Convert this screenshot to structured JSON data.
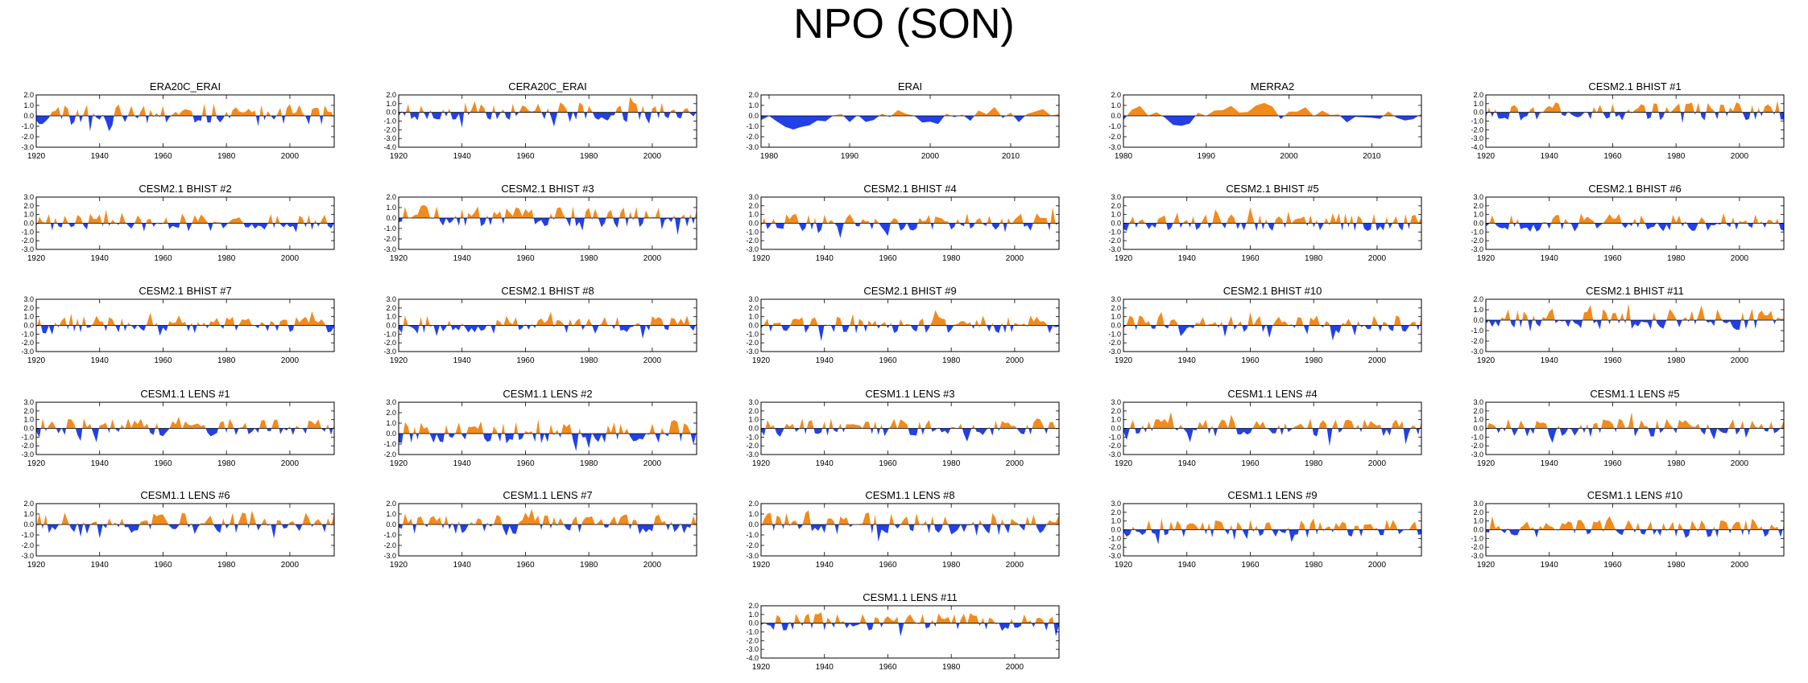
{
  "title": "NPO (SON)",
  "colors": {
    "positive": "#f28a1c",
    "negative": "#2240e8",
    "axis": "#000000",
    "zero_line": "#000000"
  },
  "panel_grid": {
    "columns": 5,
    "rows": [
      [
        "ERA20C_ERAI",
        "CERA20C_ERAI",
        "ERAI",
        "MERRA2",
        "CESM2.1 BHIST #1"
      ],
      [
        "CESM2.1 BHIST #2",
        "CESM2.1 BHIST #3",
        "CESM2.1 BHIST #4",
        "CESM2.1 BHIST #5",
        "CESM2.1 BHIST #6"
      ],
      [
        "CESM2.1 BHIST #7",
        "CESM2.1 BHIST #8",
        "CESM2.1 BHIST #9",
        "CESM2.1 BHIST #10",
        "CESM2.1 BHIST #11"
      ],
      [
        "CESM1.1 LENS #1",
        "CESM1.1 LENS #2",
        "CESM1.1 LENS #3",
        "CESM1.1 LENS #4",
        "CESM1.1 LENS #5"
      ],
      [
        "CESM1.1 LENS #6",
        "CESM1.1 LENS #7",
        "CESM1.1 LENS #8",
        "CESM1.1 LENS #9",
        "CESM1.1 LENS #10"
      ],
      [
        "",
        "",
        "CESM1.1 LENS #11",
        "",
        ""
      ]
    ]
  },
  "chart_data": [
    {
      "type": "area",
      "title": "ERA20C_ERAI",
      "xlim": [
        1920,
        2014
      ],
      "xticks": [
        "1920",
        "1940",
        "1960",
        "1980",
        "2000"
      ],
      "ylim": [
        -3,
        2
      ],
      "yticks": [
        "2.0",
        "1.0",
        "0.0",
        "-1.0",
        "-2.0",
        "-3.0"
      ],
      "seed": 11
    },
    {
      "type": "area",
      "title": "CERA20C_ERAI",
      "xlim": [
        1920,
        2014
      ],
      "xticks": [
        "1920",
        "1940",
        "1960",
        "1980",
        "2000"
      ],
      "ylim": [
        -4,
        2
      ],
      "yticks": [
        "2.0",
        "1.0",
        "0.0",
        "-1.0",
        "-2.0",
        "-3.0",
        "-4.0"
      ],
      "seed": 23
    },
    {
      "type": "area",
      "title": "ERAI",
      "xlim": [
        1979,
        2016
      ],
      "xticks": [
        "1980",
        "1990",
        "2000",
        "2010"
      ],
      "ylim": [
        -3,
        2
      ],
      "yticks": [
        "2.0",
        "1.0",
        "0.0",
        "-1.0",
        "-2.0",
        "-3.0"
      ],
      "seed": 37,
      "smooth": true
    },
    {
      "type": "area",
      "title": "MERRA2",
      "xlim": [
        1980,
        2016
      ],
      "xticks": [
        "1980",
        "1990",
        "2000",
        "2010"
      ],
      "ylim": [
        -3,
        2
      ],
      "yticks": [
        "2.0",
        "1.0",
        "0.0",
        "-1.0",
        "-2.0",
        "-3.0"
      ],
      "seed": 41,
      "smooth": true
    },
    {
      "type": "area",
      "title": "CESM2.1 BHIST #1",
      "xlim": [
        1920,
        2014
      ],
      "xticks": [
        "1920",
        "1940",
        "1960",
        "1980",
        "2000"
      ],
      "ylim": [
        -4,
        2
      ],
      "yticks": [
        "2.0",
        "1.0",
        "0.0",
        "-1.0",
        "-2.0",
        "-3.0",
        "-4.0"
      ],
      "seed": 53
    },
    {
      "type": "area",
      "title": "CESM2.1 BHIST #2",
      "xlim": [
        1920,
        2014
      ],
      "xticks": [
        "1920",
        "1940",
        "1960",
        "1980",
        "2000"
      ],
      "ylim": [
        -3,
        3
      ],
      "yticks": [
        "3.0",
        "2.0",
        "1.0",
        "0.0",
        "-1.0",
        "-2.0",
        "-3.0"
      ],
      "seed": 61
    },
    {
      "type": "area",
      "title": "CESM2.1 BHIST #3",
      "xlim": [
        1920,
        2014
      ],
      "xticks": [
        "1920",
        "1940",
        "1960",
        "1980",
        "2000"
      ],
      "ylim": [
        -3,
        2
      ],
      "yticks": [
        "2.0",
        "1.0",
        "0.0",
        "-1.0",
        "-2.0",
        "-3.0"
      ],
      "seed": 71
    },
    {
      "type": "area",
      "title": "CESM2.1 BHIST #4",
      "xlim": [
        1920,
        2014
      ],
      "xticks": [
        "1920",
        "1940",
        "1960",
        "1980",
        "2000"
      ],
      "ylim": [
        -3,
        3
      ],
      "yticks": [
        "3.0",
        "2.0",
        "1.0",
        "0.0",
        "-1.0",
        "-2.0",
        "-3.0"
      ],
      "seed": 83
    },
    {
      "type": "area",
      "title": "CESM2.1 BHIST #5",
      "xlim": [
        1920,
        2014
      ],
      "xticks": [
        "1920",
        "1940",
        "1960",
        "1980",
        "2000"
      ],
      "ylim": [
        -3,
        3
      ],
      "yticks": [
        "3.0",
        "2.0",
        "1.0",
        "0.0",
        "-1.0",
        "-2.0",
        "-3.0"
      ],
      "seed": 97
    },
    {
      "type": "area",
      "title": "CESM2.1 BHIST #6",
      "xlim": [
        1920,
        2014
      ],
      "xticks": [
        "1920",
        "1940",
        "1960",
        "1980",
        "2000"
      ],
      "ylim": [
        -3,
        3
      ],
      "yticks": [
        "3.0",
        "2.0",
        "1.0",
        "0.0",
        "-1.0",
        "-2.0",
        "-3.0"
      ],
      "seed": 101
    },
    {
      "type": "area",
      "title": "CESM2.1 BHIST #7",
      "xlim": [
        1920,
        2014
      ],
      "xticks": [
        "1920",
        "1940",
        "1960",
        "1980",
        "2000"
      ],
      "ylim": [
        -3,
        3
      ],
      "yticks": [
        "3.0",
        "2.0",
        "1.0",
        "0.0",
        "-1.0",
        "-2.0",
        "-3.0"
      ],
      "seed": 113
    },
    {
      "type": "area",
      "title": "CESM2.1 BHIST #8",
      "xlim": [
        1920,
        2014
      ],
      "xticks": [
        "1920",
        "1940",
        "1960",
        "1980",
        "2000"
      ],
      "ylim": [
        -3,
        3
      ],
      "yticks": [
        "3.0",
        "2.0",
        "1.0",
        "0.0",
        "-1.0",
        "-2.0",
        "-3.0"
      ],
      "seed": 127
    },
    {
      "type": "area",
      "title": "CESM2.1 BHIST #9",
      "xlim": [
        1920,
        2014
      ],
      "xticks": [
        "1920",
        "1940",
        "1960",
        "1980",
        "2000"
      ],
      "ylim": [
        -3,
        3
      ],
      "yticks": [
        "3.0",
        "2.0",
        "1.0",
        "0.0",
        "-1.0",
        "-2.0",
        "-3.0"
      ],
      "seed": 131
    },
    {
      "type": "area",
      "title": "CESM2.1 BHIST #10",
      "xlim": [
        1920,
        2014
      ],
      "xticks": [
        "1920",
        "1940",
        "1960",
        "1980",
        "2000"
      ],
      "ylim": [
        -3,
        3
      ],
      "yticks": [
        "3.0",
        "2.0",
        "1.0",
        "0.0",
        "-1.0",
        "-2.0",
        "-3.0"
      ],
      "seed": 139
    },
    {
      "type": "area",
      "title": "CESM2.1 BHIST #11",
      "xlim": [
        1920,
        2014
      ],
      "xticks": [
        "1920",
        "1940",
        "1960",
        "1980",
        "2000"
      ],
      "ylim": [
        -3,
        2
      ],
      "yticks": [
        "2.0",
        "1.0",
        "0.0",
        "-1.0",
        "-2.0",
        "-3.0"
      ],
      "seed": 149
    },
    {
      "type": "area",
      "title": "CESM1.1 LENS #1",
      "xlim": [
        1920,
        2014
      ],
      "xticks": [
        "1920",
        "1940",
        "1960",
        "1980",
        "2000"
      ],
      "ylim": [
        -3,
        3
      ],
      "yticks": [
        "3.0",
        "2.0",
        "1.0",
        "0.0",
        "-1.0",
        "-2.0",
        "-3.0"
      ],
      "seed": 151
    },
    {
      "type": "area",
      "title": "CESM1.1 LENS #2",
      "xlim": [
        1920,
        2014
      ],
      "xticks": [
        "1920",
        "1940",
        "1960",
        "1980",
        "2000"
      ],
      "ylim": [
        -2,
        3
      ],
      "yticks": [
        "3.0",
        "2.0",
        "1.0",
        "0.0",
        "-1.0",
        "-2.0"
      ],
      "seed": 163
    },
    {
      "type": "area",
      "title": "CESM1.1 LENS #3",
      "xlim": [
        1920,
        2014
      ],
      "xticks": [
        "1920",
        "1940",
        "1960",
        "1980",
        "2000"
      ],
      "ylim": [
        -3,
        3
      ],
      "yticks": [
        "3.0",
        "2.0",
        "1.0",
        "0.0",
        "-1.0",
        "-2.0",
        "-3.0"
      ],
      "seed": 173
    },
    {
      "type": "area",
      "title": "CESM1.1 LENS #4",
      "xlim": [
        1920,
        2014
      ],
      "xticks": [
        "1920",
        "1940",
        "1960",
        "1980",
        "2000"
      ],
      "ylim": [
        -3,
        3
      ],
      "yticks": [
        "3.0",
        "2.0",
        "1.0",
        "0.0",
        "-1.0",
        "-2.0",
        "-3.0"
      ],
      "seed": 181
    },
    {
      "type": "area",
      "title": "CESM1.1 LENS #5",
      "xlim": [
        1920,
        2014
      ],
      "xticks": [
        "1920",
        "1940",
        "1960",
        "1980",
        "2000"
      ],
      "ylim": [
        -3,
        3
      ],
      "yticks": [
        "3.0",
        "2.0",
        "1.0",
        "0.0",
        "-1.0",
        "-2.0",
        "-3.0"
      ],
      "seed": 191
    },
    {
      "type": "area",
      "title": "CESM1.1 LENS #6",
      "xlim": [
        1920,
        2014
      ],
      "xticks": [
        "1920",
        "1940",
        "1960",
        "1980",
        "2000"
      ],
      "ylim": [
        -3,
        2
      ],
      "yticks": [
        "2.0",
        "1.0",
        "0.0",
        "-1.0",
        "-2.0",
        "-3.0"
      ],
      "seed": 197
    },
    {
      "type": "area",
      "title": "CESM1.1 LENS #7",
      "xlim": [
        1920,
        2014
      ],
      "xticks": [
        "1920",
        "1940",
        "1960",
        "1980",
        "2000"
      ],
      "ylim": [
        -3,
        2
      ],
      "yticks": [
        "2.0",
        "1.0",
        "0.0",
        "-1.0",
        "-2.0",
        "-3.0"
      ],
      "seed": 211
    },
    {
      "type": "area",
      "title": "CESM1.1 LENS #8",
      "xlim": [
        1920,
        2014
      ],
      "xticks": [
        "1920",
        "1940",
        "1960",
        "1980",
        "2000"
      ],
      "ylim": [
        -3,
        2
      ],
      "yticks": [
        "2.0",
        "1.0",
        "0.0",
        "-1.0",
        "-2.0",
        "-3.0"
      ],
      "seed": 223
    },
    {
      "type": "area",
      "title": "CESM1.1 LENS #9",
      "xlim": [
        1920,
        2014
      ],
      "xticks": [
        "1920",
        "1940",
        "1960",
        "1980",
        "2000"
      ],
      "ylim": [
        -3,
        3
      ],
      "yticks": [
        "3.0",
        "2.0",
        "1.0",
        "0.0",
        "-1.0",
        "-2.0",
        "-3.0"
      ],
      "seed": 227
    },
    {
      "type": "area",
      "title": "CESM1.1 LENS #10",
      "xlim": [
        1920,
        2014
      ],
      "xticks": [
        "1920",
        "1940",
        "1960",
        "1980",
        "2000"
      ],
      "ylim": [
        -3,
        3
      ],
      "yticks": [
        "3.0",
        "2.0",
        "1.0",
        "0.0",
        "-1.0",
        "-2.0",
        "-3.0"
      ],
      "seed": 233
    },
    {
      "type": "area",
      "title": "CESM1.1 LENS #11",
      "xlim": [
        1920,
        2014
      ],
      "xticks": [
        "1920",
        "1940",
        "1960",
        "1980",
        "2000"
      ],
      "ylim": [
        -4,
        2
      ],
      "yticks": [
        "2.0",
        "1.0",
        "0.0",
        "-1.0",
        "-2.0",
        "-3.0",
        "-4.0"
      ],
      "seed": 239
    }
  ]
}
